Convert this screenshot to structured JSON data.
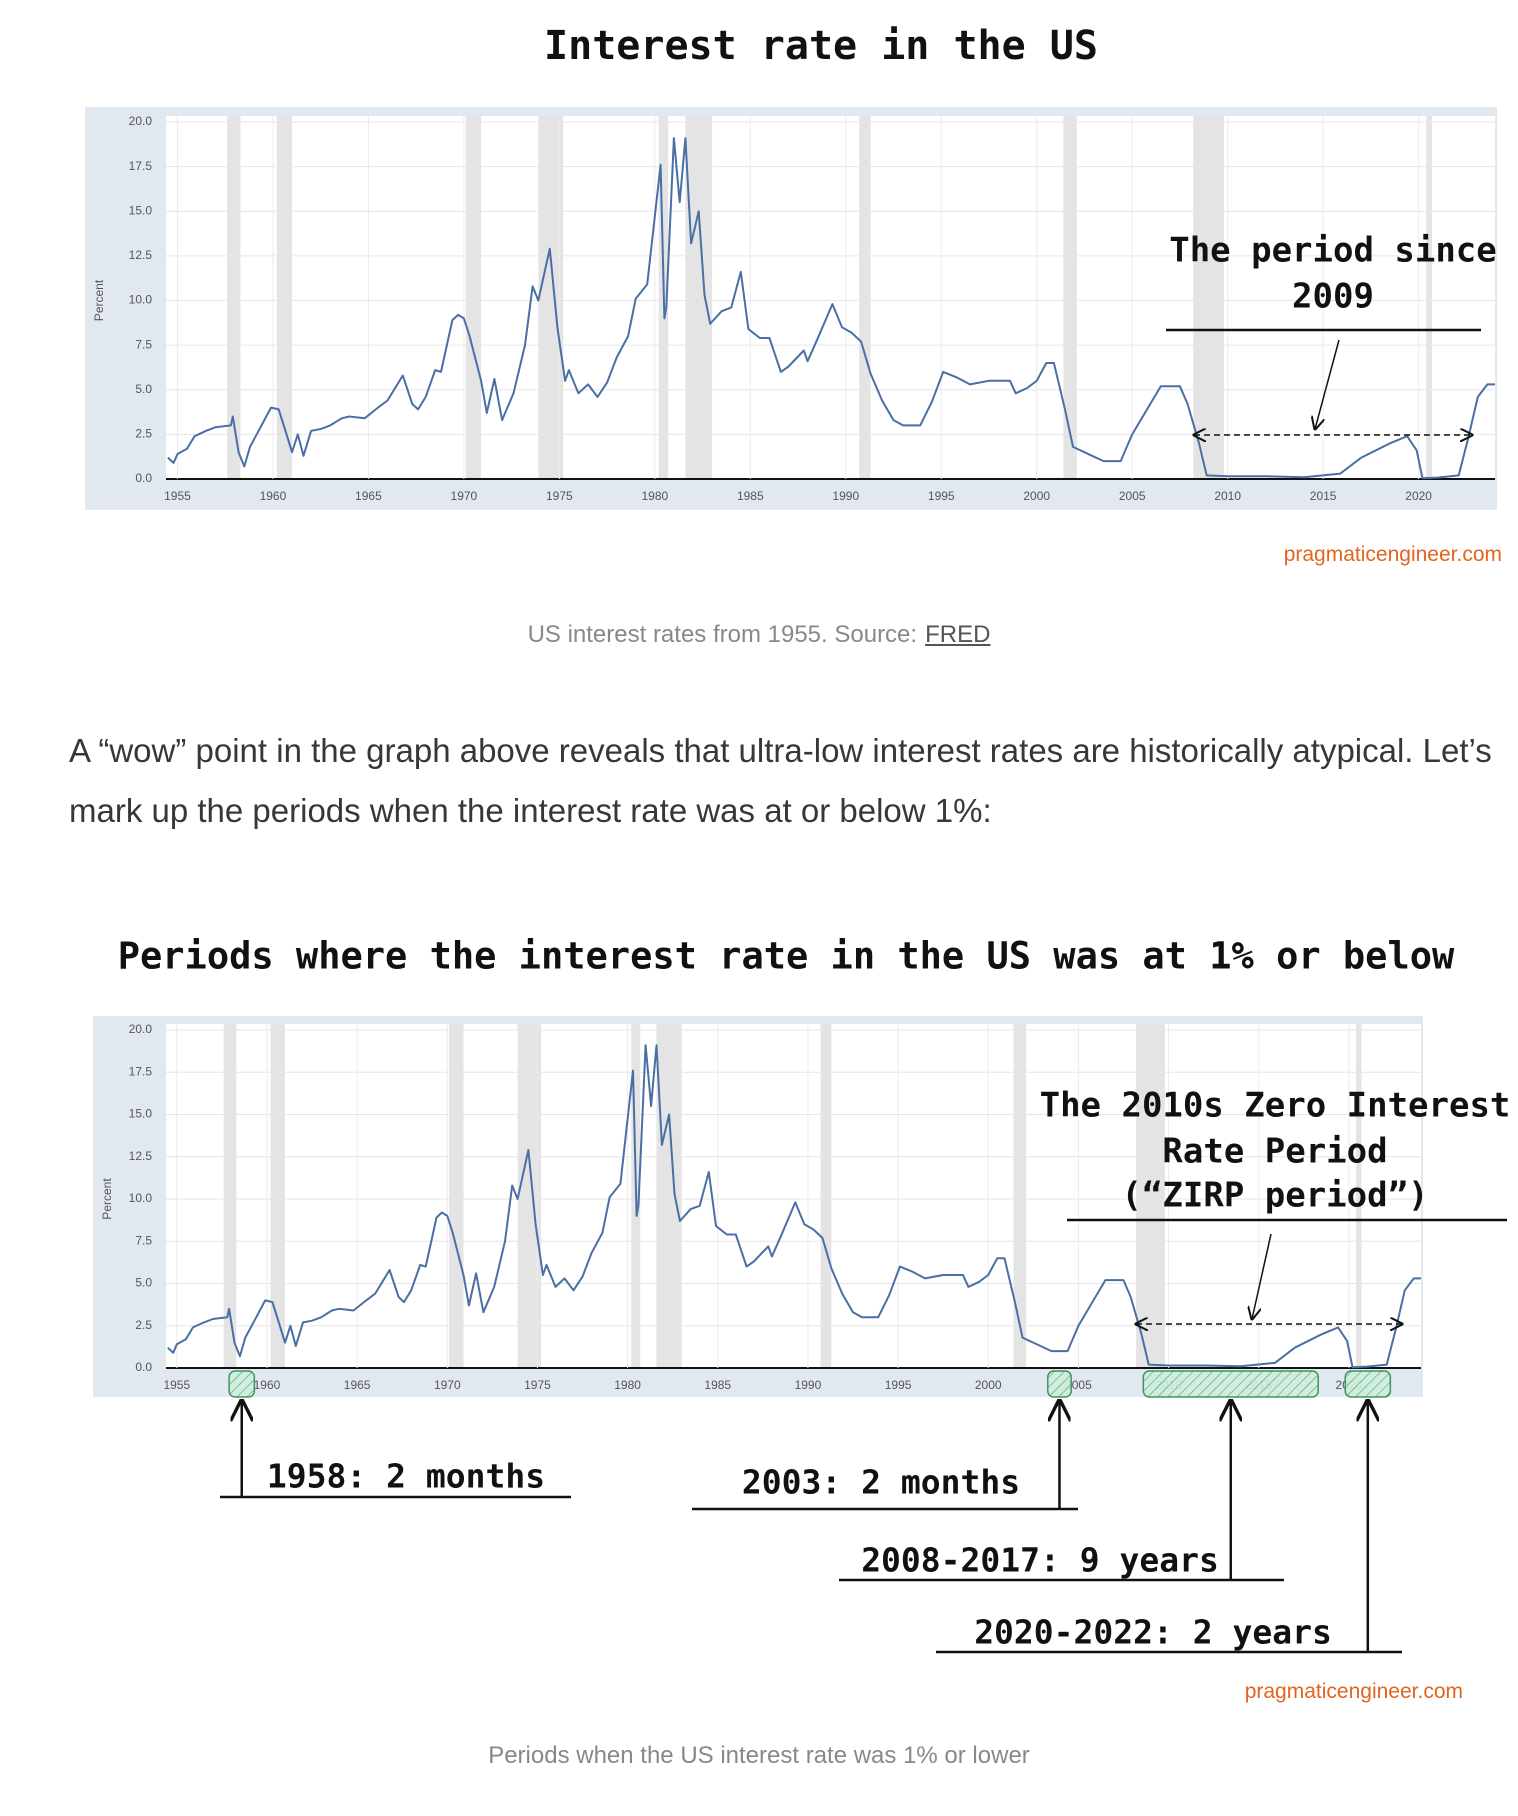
{
  "chart_data": [
    {
      "type": "line",
      "title": "Interest rate in the US",
      "y_label": "Percent",
      "x": [
        1954.5,
        1954.8,
        1955.0,
        1955.5,
        1955.9,
        1956.5,
        1957.0,
        1957.8,
        1957.9,
        1958.2,
        1958.5,
        1958.8,
        1959.3,
        1959.9,
        1960.3,
        1960.8,
        1961.0,
        1961.3,
        1961.6,
        1962.0,
        1962.5,
        1963.0,
        1963.6,
        1964.0,
        1964.8,
        1965.5,
        1966.0,
        1966.8,
        1967.3,
        1967.6,
        1968.0,
        1968.5,
        1968.8,
        1969.4,
        1969.7,
        1970.0,
        1970.3,
        1970.9,
        1971.2,
        1971.6,
        1972.0,
        1972.6,
        1973.2,
        1973.6,
        1973.9,
        1974.5,
        1974.9,
        1975.3,
        1975.5,
        1976.0,
        1976.5,
        1977.0,
        1977.5,
        1978.0,
        1978.6,
        1979.0,
        1979.6,
        1980.3,
        1980.5,
        1980.6,
        1981.0,
        1981.3,
        1981.6,
        1981.9,
        1982.3,
        1982.6,
        1982.9,
        1983.5,
        1984.0,
        1984.5,
        1984.9,
        1985.5,
        1986.0,
        1986.6,
        1987.0,
        1987.8,
        1988.0,
        1988.5,
        1989.3,
        1989.8,
        1990.3,
        1990.8,
        1991.3,
        1991.9,
        1992.5,
        1993.0,
        1993.9,
        1994.5,
        1995.1,
        1995.8,
        1996.5,
        1997.5,
        1998.6,
        1998.9,
        1999.5,
        2000.0,
        2000.5,
        2000.9,
        2001.5,
        2001.9,
        2002.9,
        2003.5,
        2004.4,
        2005.0,
        2006.5,
        2007.5,
        2007.9,
        2008.5,
        2008.9,
        2010.0,
        2012.0,
        2014.0,
        2015.9,
        2017.0,
        2018.5,
        2019.4,
        2019.9,
        2020.2,
        2021.0,
        2022.1,
        2022.6,
        2023.1,
        2023.6,
        2024.0
      ],
      "values": [
        1.2,
        0.9,
        1.4,
        1.7,
        2.4,
        2.7,
        2.9,
        3.0,
        3.5,
        1.5,
        0.7,
        1.8,
        2.8,
        4.0,
        3.9,
        2.2,
        1.5,
        2.5,
        1.3,
        2.7,
        2.8,
        3.0,
        3.4,
        3.5,
        3.4,
        4.0,
        4.4,
        5.8,
        4.2,
        3.9,
        4.6,
        6.1,
        6.0,
        8.9,
        9.2,
        9.0,
        8.0,
        5.5,
        3.7,
        5.6,
        3.3,
        4.8,
        7.5,
        10.8,
        10.0,
        12.9,
        8.5,
        5.5,
        6.1,
        4.8,
        5.3,
        4.6,
        5.4,
        6.8,
        8.0,
        10.1,
        10.9,
        17.6,
        9.0,
        9.6,
        19.1,
        15.5,
        19.1,
        13.2,
        15.0,
        10.3,
        8.7,
        9.4,
        9.6,
        11.6,
        8.4,
        7.9,
        7.9,
        6.0,
        6.3,
        7.2,
        6.6,
        7.8,
        9.8,
        8.5,
        8.2,
        7.7,
        5.9,
        4.4,
        3.3,
        3.0,
        3.0,
        4.3,
        6.0,
        5.7,
        5.3,
        5.5,
        5.5,
        4.8,
        5.1,
        5.5,
        6.5,
        6.5,
        3.8,
        1.8,
        1.3,
        1.0,
        1.0,
        2.5,
        5.2,
        5.2,
        4.2,
        2.0,
        0.2,
        0.15,
        0.15,
        0.1,
        0.3,
        1.2,
        2.0,
        2.4,
        1.6,
        0.05,
        0.08,
        0.2,
        2.3,
        4.6,
        5.3,
        5.3
      ],
      "color": "#4a6fa5",
      "xlim": [
        1954.4,
        2024
      ],
      "xticks": [
        1955,
        1960,
        1965,
        1970,
        1975,
        1980,
        1985,
        1990,
        1995,
        2000,
        2005,
        2010,
        2015,
        2020
      ],
      "ylim": [
        0,
        20
      ],
      "yticks": [
        {
          "value": 0,
          "label": "0.0"
        },
        2.5,
        {
          "value": 5,
          "label": "5.0"
        },
        7.5,
        {
          "value": 10,
          "label": "10.0"
        },
        12.5,
        {
          "value": 15,
          "label": "15.0"
        },
        17.5,
        {
          "value": 20,
          "label": "20.0"
        }
      ],
      "grid": true,
      "recessions": [
        [
          1957.6,
          1958.3
        ],
        [
          1960.2,
          1961.0
        ],
        [
          1970.1,
          1970.9
        ],
        [
          1973.9,
          1975.2
        ],
        [
          1980.2,
          1980.7
        ],
        [
          1981.6,
          1983.0
        ],
        [
          1990.7,
          1991.3
        ],
        [
          2001.4,
          2002.1
        ],
        [
          2008.2,
          2009.8
        ],
        [
          2020.4,
          2020.7
        ]
      ],
      "annotation": [
        "The period since",
        "2009"
      ],
      "watermark": "pragmaticengineer.com",
      "caption": "US interest rates from 1955. Source:",
      "caption_link": "FRED"
    },
    {
      "type": "line",
      "title": "Periods where the interest rate in the US was at 1% or below",
      "y_label": "Percent",
      "x": [
        1954.5,
        1954.8,
        1955.0,
        1955.5,
        1955.9,
        1956.5,
        1957.0,
        1957.8,
        1957.9,
        1958.2,
        1958.5,
        1958.8,
        1959.3,
        1959.9,
        1960.3,
        1960.8,
        1961.0,
        1961.3,
        1961.6,
        1962.0,
        1962.5,
        1963.0,
        1963.6,
        1964.0,
        1964.8,
        1965.5,
        1966.0,
        1966.8,
        1967.3,
        1967.6,
        1968.0,
        1968.5,
        1968.8,
        1969.4,
        1969.7,
        1970.0,
        1970.3,
        1970.9,
        1971.2,
        1971.6,
        1972.0,
        1972.6,
        1973.2,
        1973.6,
        1973.9,
        1974.5,
        1974.9,
        1975.3,
        1975.5,
        1976.0,
        1976.5,
        1977.0,
        1977.5,
        1978.0,
        1978.6,
        1979.0,
        1979.6,
        1980.3,
        1980.5,
        1980.6,
        1981.0,
        1981.3,
        1981.6,
        1981.9,
        1982.3,
        1982.6,
        1982.9,
        1983.5,
        1984.0,
        1984.5,
        1984.9,
        1985.5,
        1986.0,
        1986.6,
        1987.0,
        1987.8,
        1988.0,
        1988.5,
        1989.3,
        1989.8,
        1990.3,
        1990.8,
        1991.3,
        1991.9,
        1992.5,
        1993.0,
        1993.9,
        1994.5,
        1995.1,
        1995.8,
        1996.5,
        1997.5,
        1998.6,
        1998.9,
        1999.5,
        2000.0,
        2000.5,
        2000.9,
        2001.5,
        2001.9,
        2002.9,
        2003.5,
        2004.4,
        2005.0,
        2006.5,
        2007.5,
        2007.9,
        2008.5,
        2008.9,
        2010.0,
        2012.0,
        2014.0,
        2015.9,
        2017.0,
        2018.5,
        2019.4,
        2019.9,
        2020.2,
        2021.0,
        2022.1,
        2022.6,
        2023.1,
        2023.6,
        2024.0
      ],
      "values": [
        1.2,
        0.9,
        1.4,
        1.7,
        2.4,
        2.7,
        2.9,
        3.0,
        3.5,
        1.5,
        0.7,
        1.8,
        2.8,
        4.0,
        3.9,
        2.2,
        1.5,
        2.5,
        1.3,
        2.7,
        2.8,
        3.0,
        3.4,
        3.5,
        3.4,
        4.0,
        4.4,
        5.8,
        4.2,
        3.9,
        4.6,
        6.1,
        6.0,
        8.9,
        9.2,
        9.0,
        8.0,
        5.5,
        3.7,
        5.6,
        3.3,
        4.8,
        7.5,
        10.8,
        10.0,
        12.9,
        8.5,
        5.5,
        6.1,
        4.8,
        5.3,
        4.6,
        5.4,
        6.8,
        8.0,
        10.1,
        10.9,
        17.6,
        9.0,
        9.6,
        19.1,
        15.5,
        19.1,
        13.2,
        15.0,
        10.3,
        8.7,
        9.4,
        9.6,
        11.6,
        8.4,
        7.9,
        7.9,
        6.0,
        6.3,
        7.2,
        6.6,
        7.8,
        9.8,
        8.5,
        8.2,
        7.7,
        5.9,
        4.4,
        3.3,
        3.0,
        3.0,
        4.3,
        6.0,
        5.7,
        5.3,
        5.5,
        5.5,
        4.8,
        5.1,
        5.5,
        6.5,
        6.5,
        3.8,
        1.8,
        1.3,
        1.0,
        1.0,
        2.5,
        5.2,
        5.2,
        4.2,
        2.0,
        0.2,
        0.15,
        0.15,
        0.1,
        0.3,
        1.2,
        2.0,
        2.4,
        1.6,
        0.05,
        0.08,
        0.2,
        2.3,
        4.6,
        5.3,
        5.3
      ],
      "color": "#4a6fa5",
      "xlim": [
        1954.4,
        2024
      ],
      "xticks": [
        1955,
        1960,
        1965,
        1970,
        1975,
        1980,
        1985,
        1990,
        1995,
        2000,
        2005,
        2010,
        2015,
        2020
      ],
      "ylim": [
        0,
        20
      ],
      "yticks": [
        {
          "value": 0,
          "label": "0.0"
        },
        2.5,
        {
          "value": 5,
          "label": "5.0"
        },
        7.5,
        {
          "value": 10,
          "label": "10.0"
        },
        12.5,
        {
          "value": 15,
          "label": "15.0"
        },
        17.5,
        {
          "value": 20,
          "label": "20.0"
        }
      ],
      "grid": true,
      "recessions": [
        [
          1957.6,
          1958.3
        ],
        [
          1960.2,
          1961.0
        ],
        [
          1970.1,
          1970.9
        ],
        [
          1973.9,
          1975.2
        ],
        [
          1980.2,
          1980.7
        ],
        [
          1981.6,
          1983.0
        ],
        [
          1990.7,
          1991.3
        ],
        [
          2001.4,
          2002.1
        ],
        [
          2008.2,
          2009.8
        ],
        [
          2020.4,
          2020.7
        ]
      ],
      "highlights": [
        [
          1957.9,
          1959.3
        ],
        [
          2003.3,
          2004.6
        ],
        [
          2008.6,
          2018.3
        ],
        [
          2019.8,
          2022.3
        ]
      ],
      "highlight_labels": [
        "1958: 2 months",
        "2003: 2 months",
        "2008-2017: 9 years",
        "2020-2022: 2 years"
      ],
      "annotation": [
        "The 2010s Zero Interest",
        "Rate Period",
        "(“ZIRP period”)"
      ],
      "watermark": "pragmaticengineer.com",
      "caption": "Periods when the US interest rate was 1% or lower"
    }
  ],
  "paragraph": "A “wow” point in the graph above reveals that ultra-low interest rates are historically atypical. Let’s mark up the periods when the interest rate was at or below 1%:"
}
